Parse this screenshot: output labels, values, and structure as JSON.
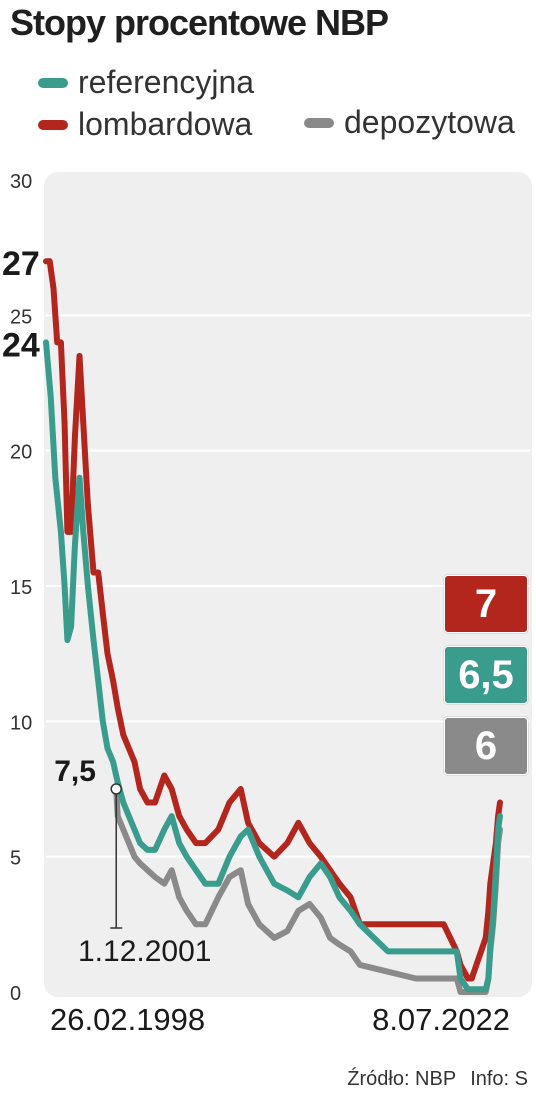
{
  "title": "Stopy procentowe NBP",
  "legend": [
    {
      "label": "referencyjna",
      "color": "#3a9c8c"
    },
    {
      "label": "lombardowa",
      "color": "#b3261e"
    },
    {
      "label": "depozytowa",
      "color": "#8a8a8a"
    }
  ],
  "badges": [
    {
      "text": "7",
      "color": "#b3261e"
    },
    {
      "text": "6,5",
      "color": "#3a9c8c"
    },
    {
      "text": "6",
      "color": "#8a8a8a"
    }
  ],
  "source": {
    "text": "Źródło: NBP",
    "info": "Info: S"
  },
  "chart_data": {
    "type": "line",
    "ylim": [
      0,
      30
    ],
    "y_ticks": [
      "0",
      "5",
      "10",
      "15",
      "20",
      "25",
      "30"
    ],
    "x_labels": {
      "start": "26.02.1998",
      "end": "8.07.2022"
    },
    "xlim": [
      1998.15,
      2022.52
    ],
    "start_labels": [
      {
        "text": "27",
        "value": 27
      },
      {
        "text": "24",
        "value": 24
      }
    ],
    "annotation": {
      "value_text": "7,5",
      "date_text": "1.12.2001",
      "x": 2001.92,
      "y": 7.5
    },
    "grid": true,
    "series": [
      {
        "name": "lombardowa",
        "color": "#b3261e",
        "x": [
          1998.15,
          1998.35,
          1998.55,
          1998.75,
          1998.95,
          1999.15,
          1999.3,
          1999.5,
          1999.7,
          1999.95,
          2000.15,
          2000.4,
          2000.7,
          2000.95,
          2001.2,
          2001.45,
          2001.75,
          2002.0,
          2002.3,
          2002.6,
          2002.9,
          2003.2,
          2003.6,
          2004.0,
          2004.5,
          2004.9,
          2005.3,
          2005.7,
          2006.2,
          2006.7,
          2007.4,
          2008.0,
          2008.6,
          2009.0,
          2009.6,
          2010.4,
          2011.1,
          2011.7,
          2012.3,
          2012.9,
          2013.4,
          2013.9,
          2014.5,
          2015.0,
          2016.5,
          2018.0,
          2019.5,
          2020.2,
          2020.4,
          2020.8,
          2021.0,
          2021.75,
          2021.9,
          2022.0,
          2022.15,
          2022.3,
          2022.42,
          2022.52
        ],
        "y": [
          27,
          27,
          26,
          24,
          24,
          21,
          17,
          17,
          20.5,
          23.5,
          21,
          18,
          15.5,
          15.5,
          14,
          12.5,
          11.5,
          10.5,
          9.5,
          9,
          8.5,
          7.5,
          7,
          7,
          8,
          7.5,
          6.5,
          6,
          5.5,
          5.5,
          6,
          7,
          7.5,
          6.25,
          5.5,
          5,
          5.5,
          6.25,
          5.5,
          5,
          4.5,
          4,
          3.5,
          2.5,
          2.5,
          2.5,
          2.5,
          1.5,
          1,
          0.5,
          0.5,
          2,
          3,
          4,
          4.75,
          5.5,
          6.5,
          7
        ]
      },
      {
        "name": "referencyjna",
        "color": "#3a9c8c",
        "x": [
          1998.15,
          1998.4,
          1998.65,
          1998.95,
          1999.15,
          1999.3,
          1999.5,
          1999.7,
          1999.95,
          2000.15,
          2000.4,
          2000.7,
          2000.95,
          2001.2,
          2001.45,
          2001.75,
          2002.0,
          2002.3,
          2002.6,
          2002.9,
          2003.2,
          2003.6,
          2004.0,
          2004.5,
          2004.9,
          2005.3,
          2005.7,
          2006.2,
          2006.7,
          2007.4,
          2008.0,
          2008.6,
          2009.0,
          2009.6,
          2010.4,
          2011.1,
          2011.7,
          2012.3,
          2012.9,
          2013.4,
          2013.9,
          2014.5,
          2015.0,
          2016.5,
          2018.0,
          2019.5,
          2020.2,
          2020.4,
          2020.8,
          2021.0,
          2021.75,
          2021.9,
          2022.0,
          2022.15,
          2022.3,
          2022.42,
          2022.52
        ],
        "y": [
          24,
          22,
          19,
          17,
          15,
          13,
          13.5,
          16.5,
          19,
          17,
          15,
          13,
          11.5,
          10,
          9,
          8.5,
          7.75,
          7,
          6.5,
          6,
          5.5,
          5.25,
          5.25,
          6,
          6.5,
          5.5,
          5,
          4.5,
          4,
          4,
          5,
          5.75,
          6,
          5,
          4,
          3.75,
          3.5,
          4.25,
          4.75,
          4.25,
          3.5,
          3,
          2.5,
          1.5,
          1.5,
          1.5,
          1.5,
          0.5,
          0.1,
          0.1,
          0.1,
          0.5,
          1.75,
          2.75,
          4.5,
          6,
          6.5
        ]
      },
      {
        "name": "depozytowa",
        "color": "#8a8a8a",
        "x": [
          2001.92,
          2002.0,
          2002.3,
          2002.6,
          2002.9,
          2003.2,
          2003.6,
          2004.0,
          2004.5,
          2004.9,
          2005.3,
          2005.7,
          2006.2,
          2006.7,
          2007.4,
          2008.0,
          2008.6,
          2009.0,
          2009.6,
          2010.4,
          2011.1,
          2011.7,
          2012.3,
          2012.9,
          2013.4,
          2013.9,
          2014.5,
          2015.0,
          2016.5,
          2018.0,
          2019.5,
          2020.2,
          2020.4,
          2020.8,
          2021.0,
          2021.75,
          2021.9,
          2022.0,
          2022.15,
          2022.3,
          2022.42,
          2022.52
        ],
        "y": [
          7.5,
          6.5,
          6,
          5.5,
          5,
          4.75,
          4.5,
          4.25,
          4,
          4.5,
          3.5,
          3,
          2.5,
          2.5,
          3.5,
          4.25,
          4.5,
          3.25,
          2.5,
          2,
          2.25,
          3,
          3.25,
          2.75,
          2,
          1.75,
          1.5,
          1,
          0.75,
          0.5,
          0.5,
          0.5,
          0,
          0,
          0,
          0,
          0.5,
          1.5,
          2.5,
          4,
          5.5,
          6
        ]
      }
    ]
  }
}
